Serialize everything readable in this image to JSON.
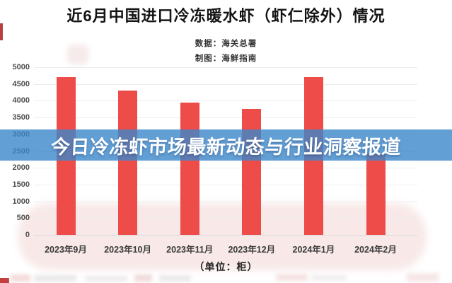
{
  "header": {
    "title": "近6月中国进口冷冻暖水虾（虾仁除外）情况",
    "meta": [
      "数据：海关总署",
      "制图：海鲜指南"
    ]
  },
  "banner": {
    "text": "今日冷冻虾市场最新动态与行业洞察报道",
    "bg_rgba": "rgba(59,135,203,0.8)",
    "text_color": "#ffffff"
  },
  "chart_data": {
    "type": "bar",
    "title": "近6月中国进口冷冻暖水虾（虾仁除外）情况",
    "categories": [
      "2023年9月",
      "2023年10月",
      "2023年11月",
      "2023年12月",
      "2024年1月",
      "2024年2月"
    ],
    "values": [
      4700,
      4300,
      3950,
      3750,
      4700,
      2400
    ],
    "unit_label": "（单位：柜）",
    "xlabel": "（单位：柜）",
    "ylabel": "",
    "ylim": [
      0,
      5000
    ],
    "ytick_step": 500,
    "bar_color": "#ee4c49",
    "grid": true,
    "legend": "none"
  },
  "colors": {
    "bar": "#ee4c49",
    "banner": "rgba(59,135,203,0.8)",
    "pink_card": "#f8e9e8",
    "grid": "#ececec"
  }
}
